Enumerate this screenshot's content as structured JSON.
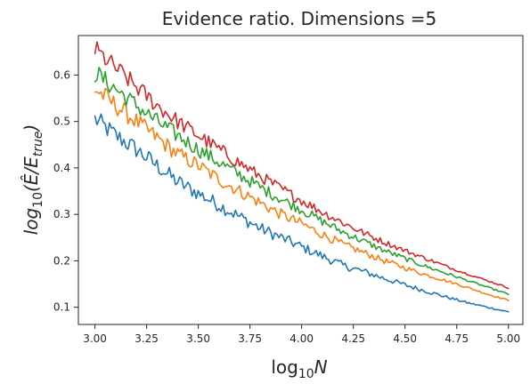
{
  "chart_data": {
    "type": "line",
    "title": "Evidence ratio.  Dimensions =5",
    "xlabel_base": "log",
    "xlabel_sub": "10",
    "xlabel_var": "N",
    "ylabel_base": "log",
    "ylabel_sub": "10",
    "ylabel_expr": "(Ê/E",
    "ylabel_expr_sub": "true",
    "ylabel_close": ")",
    "xlim": [
      2.92,
      5.07
    ],
    "ylim": [
      0.063,
      0.685
    ],
    "xticks": [
      3.0,
      3.25,
      3.5,
      3.75,
      4.0,
      4.25,
      4.5,
      4.75,
      5.0
    ],
    "xtick_labels": [
      "3.00",
      "3.25",
      "3.50",
      "3.75",
      "4.00",
      "4.25",
      "4.50",
      "4.75",
      "5.00"
    ],
    "yticks": [
      0.1,
      0.2,
      0.3,
      0.4,
      0.5,
      0.6
    ],
    "ytick_labels": [
      "0.1",
      "0.2",
      "0.3",
      "0.4",
      "0.5",
      "0.6"
    ],
    "grid": false,
    "legend": "none",
    "x": [
      3.0,
      3.1,
      3.2,
      3.3,
      3.4,
      3.5,
      3.6,
      3.7,
      3.8,
      3.9,
      4.0,
      4.1,
      4.2,
      4.3,
      4.4,
      4.5,
      4.6,
      4.7,
      4.8,
      4.9,
      5.0
    ],
    "series": [
      {
        "color": "#1f77b4",
        "values": [
          0.505,
          0.47,
          0.44,
          0.405,
          0.37,
          0.345,
          0.32,
          0.295,
          0.27,
          0.25,
          0.23,
          0.21,
          0.19,
          0.177,
          0.162,
          0.148,
          0.135,
          0.122,
          0.11,
          0.1,
          0.09
        ]
      },
      {
        "color": "#ff7f0e",
        "values": [
          0.57,
          0.535,
          0.5,
          0.465,
          0.43,
          0.405,
          0.375,
          0.35,
          0.325,
          0.3,
          0.28,
          0.257,
          0.235,
          0.218,
          0.2,
          0.185,
          0.17,
          0.157,
          0.143,
          0.128,
          0.115
        ]
      },
      {
        "color": "#2ca02c",
        "values": [
          0.605,
          0.57,
          0.535,
          0.5,
          0.47,
          0.44,
          0.412,
          0.385,
          0.358,
          0.333,
          0.31,
          0.285,
          0.262,
          0.242,
          0.222,
          0.205,
          0.188,
          0.173,
          0.158,
          0.143,
          0.128
        ]
      },
      {
        "color": "#d62728",
        "values": [
          0.655,
          0.615,
          0.575,
          0.535,
          0.5,
          0.47,
          0.44,
          0.41,
          0.382,
          0.355,
          0.33,
          0.305,
          0.282,
          0.26,
          0.24,
          0.222,
          0.205,
          0.188,
          0.172,
          0.157,
          0.142
        ]
      }
    ]
  }
}
